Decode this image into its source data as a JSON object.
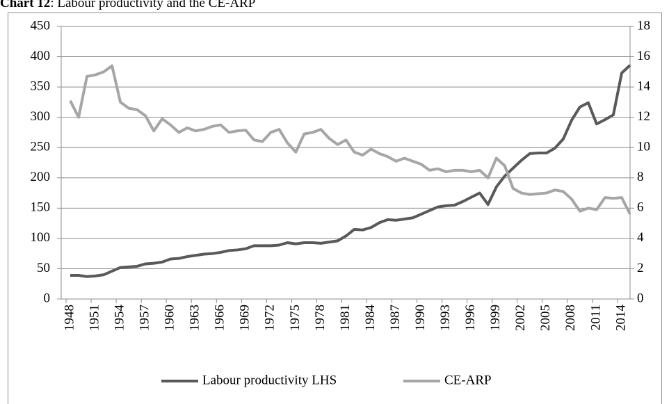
{
  "chart_data": {
    "type": "line",
    "title_prefix": "Chart 12",
    "title": ": Labour productivity and the CE-ARP",
    "categories": [
      "1948",
      null,
      null,
      "1951",
      null,
      null,
      "1954",
      null,
      null,
      "1957",
      null,
      null,
      "1960",
      null,
      null,
      "1963",
      null,
      null,
      "1966",
      null,
      null,
      "1969",
      null,
      null,
      "1972",
      null,
      null,
      "1975",
      null,
      null,
      "1978",
      null,
      null,
      "1981",
      null,
      null,
      "1984",
      null,
      null,
      "1987",
      null,
      null,
      "1990",
      null,
      null,
      "1993",
      null,
      null,
      "1996",
      null,
      null,
      "1999",
      null,
      null,
      "2002",
      null,
      null,
      "2005",
      null,
      null,
      "2008",
      null,
      null,
      "2011",
      null,
      null,
      "2014",
      null
    ],
    "series": [
      {
        "name": "Labour productivity LHS",
        "color": "#595959",
        "values": [
          39,
          39,
          37,
          38,
          40,
          46,
          52,
          53,
          54,
          58,
          59,
          61,
          66,
          67,
          70,
          72,
          74,
          75,
          77,
          80,
          81,
          83,
          88,
          88,
          88,
          89,
          93,
          91,
          93,
          93,
          92,
          94,
          96,
          104,
          115,
          114,
          118,
          126,
          131,
          130,
          132,
          134,
          140,
          146,
          152,
          154,
          155,
          161,
          168,
          175,
          156,
          185,
          203,
          216,
          229,
          240,
          241,
          241,
          249,
          264,
          295,
          317,
          324,
          289,
          296,
          304,
          373,
          386
        ]
      },
      {
        "name": "CE-ARP",
        "color": "#a6a6a6",
        "axis": "y2",
        "values": [
          13.1,
          12.0,
          14.7,
          14.8,
          15.0,
          15.4,
          13.0,
          12.6,
          12.5,
          12.1,
          11.1,
          11.9,
          11.5,
          11.0,
          11.3,
          11.1,
          11.2,
          11.4,
          11.5,
          11.0,
          11.1,
          11.15,
          10.5,
          10.4,
          11.0,
          11.2,
          10.3,
          9.7,
          10.9,
          11.0,
          11.2,
          10.6,
          10.2,
          10.5,
          9.7,
          9.5,
          9.9,
          9.6,
          9.4,
          9.1,
          9.3,
          9.1,
          8.9,
          8.5,
          8.6,
          8.4,
          8.5,
          8.5,
          8.4,
          8.5,
          8.0,
          9.3,
          8.8,
          7.3,
          7.0,
          6.9,
          6.95,
          7.0,
          7.2,
          7.1,
          6.6,
          5.8,
          6.0,
          5.9,
          6.7,
          6.65,
          6.7,
          5.6
        ]
      }
    ],
    "ylim": [
      0,
      450
    ],
    "yticks": [
      0,
      50,
      100,
      150,
      200,
      250,
      300,
      350,
      400,
      450
    ],
    "y2lim": [
      0,
      18
    ],
    "y2ticks": [
      0,
      2,
      4,
      6,
      8,
      10,
      12,
      14,
      16,
      18
    ],
    "grid": true,
    "legend": "bottom"
  }
}
